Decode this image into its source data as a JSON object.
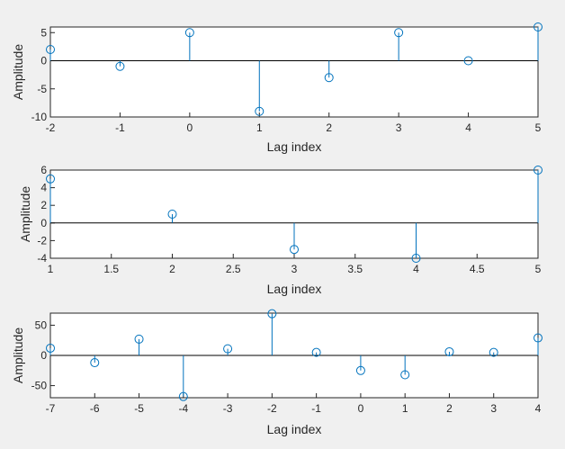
{
  "colors": {
    "stem": "#0072bd",
    "background": "#f0f0f0",
    "axes": "#ffffff"
  },
  "chart_data": [
    {
      "type": "stem",
      "xlabel": "Lag index",
      "ylabel": "Amplitude",
      "xlim": [
        -2,
        5
      ],
      "ylim": [
        -10,
        6
      ],
      "xticks": [
        -2,
        -1,
        0,
        1,
        2,
        3,
        4,
        5
      ],
      "xtick_labels": [
        "-2",
        "-1",
        "0",
        "1",
        "2",
        "3",
        "4",
        "5"
      ],
      "yticks": [
        -10,
        -5,
        0,
        5
      ],
      "ytick_labels": [
        "-10",
        "-5",
        "0",
        "5"
      ],
      "x": [
        -2,
        -1,
        0,
        1,
        2,
        3,
        4,
        5
      ],
      "values": [
        2,
        -1,
        5,
        -9,
        -3,
        5,
        0,
        6
      ],
      "grid": false
    },
    {
      "type": "stem",
      "xlabel": "Lag index",
      "ylabel": "Amplitude",
      "xlim": [
        1,
        5
      ],
      "ylim": [
        -4,
        6
      ],
      "xticks": [
        1,
        1.5,
        2,
        2.5,
        3,
        3.5,
        4,
        4.5,
        5
      ],
      "xtick_labels": [
        "1",
        "1.5",
        "2",
        "2.5",
        "3",
        "3.5",
        "4",
        "4.5",
        "5"
      ],
      "yticks": [
        -4,
        -2,
        0,
        2,
        4,
        6
      ],
      "ytick_labels": [
        "-4",
        "-2",
        "0",
        "2",
        "4",
        "6"
      ],
      "x": [
        1,
        2,
        3,
        4,
        5
      ],
      "values": [
        5,
        1,
        -3,
        -4,
        6
      ],
      "grid": false
    },
    {
      "type": "stem",
      "xlabel": "Lag index",
      "ylabel": "Amplitude",
      "xlim": [
        -7,
        4
      ],
      "ylim": [
        -70,
        70
      ],
      "xticks": [
        -7,
        -6,
        -5,
        -4,
        -3,
        -2,
        -1,
        0,
        1,
        2,
        3,
        4
      ],
      "xtick_labels": [
        "-7",
        "-6",
        "-5",
        "-4",
        "-3",
        "-2",
        "-1",
        "0",
        "1",
        "2",
        "3",
        "4"
      ],
      "yticks": [
        -50,
        0,
        50
      ],
      "ytick_labels": [
        "-50",
        "0",
        "50"
      ],
      "x": [
        -7,
        -6,
        -5,
        -4,
        -3,
        -2,
        -1,
        0,
        1,
        2,
        3,
        4
      ],
      "values": [
        12,
        -12,
        27,
        -68,
        11,
        69,
        5,
        -25,
        -32,
        6,
        5,
        29
      ],
      "grid": false
    }
  ]
}
